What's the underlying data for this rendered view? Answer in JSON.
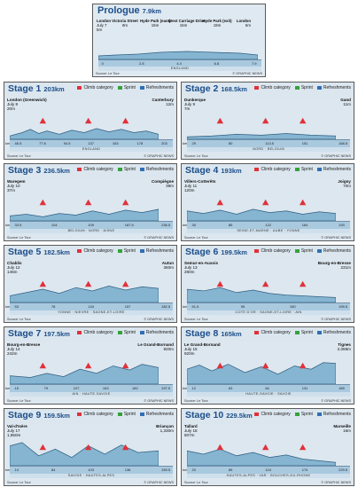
{
  "legend": {
    "climb": "Climb category",
    "sprint": "Sprint",
    "refresh": "Refreshments"
  },
  "colors": {
    "climb": "#e0313a",
    "sprint": "#36a23a",
    "refresh": "#2f6fb5",
    "title": "#1c4e8a",
    "profile": "#2e5f80",
    "fill": "#86b5d2"
  },
  "source": "Source: Le Tour",
  "credit": "© GRAPHIC NEWS",
  "prologue": {
    "title": "Prologue",
    "dist": "7.9km",
    "points": [
      {
        "name": "London",
        "sub": "July 7",
        "el": "5m"
      },
      {
        "name": "Victoria Street",
        "el": "8m"
      },
      {
        "name": "Hyde Park (east)",
        "el": "15m"
      },
      {
        "name": "West Carriage Drive",
        "el": "15m"
      },
      {
        "name": "Hyde Park (exit)",
        "el": "19m"
      },
      {
        "name": "London",
        "el": "5m"
      }
    ],
    "ticks": [
      "0",
      "2.8",
      "4.4",
      "6.8",
      "7.9"
    ],
    "region": "ENGLAND"
  },
  "stages": [
    {
      "title": "Stage 1",
      "dist": "203km",
      "start": [
        "London (Greenwich)",
        "July 8",
        "20m"
      ],
      "finish": [
        "Canterbury",
        "12m"
      ],
      "region": "ENGLAND",
      "ticks": [
        "46.5",
        "77.6",
        "94.5",
        "137",
        "163",
        "178",
        "203"
      ]
    },
    {
      "title": "Stage 2",
      "dist": "168.5km",
      "start": [
        "Dunkerque",
        "July 9",
        "7m"
      ],
      "finish": [
        "Gand",
        "11m"
      ],
      "region": "NORD · BELGIUM",
      "ticks": [
        "29",
        "80",
        "113.5",
        "151",
        "168.5"
      ]
    },
    {
      "title": "Stage 3",
      "dist": "236.5km",
      "start": [
        "Waregem",
        "July 10",
        "37m"
      ],
      "finish": [
        "Compiègne",
        "39m"
      ],
      "region": "BELGIUM · NORD · AISNE",
      "ticks": [
        "33.5",
        "104",
        "109",
        "187.5",
        "236.5"
      ]
    },
    {
      "title": "Stage 4",
      "dist": "193km",
      "start": [
        "Villers-Cotterêts",
        "July 11",
        "120m"
      ],
      "finish": [
        "Joigny",
        "70m"
      ],
      "region": "SEINE-ET-MARNE · AUBE · YONNE",
      "ticks": [
        "30",
        "85",
        "122",
        "164",
        "193"
      ]
    },
    {
      "title": "Stage 5",
      "dist": "182.5km",
      "start": [
        "Chablis",
        "July 12",
        "146m"
      ],
      "finish": [
        "Autun",
        "360m"
      ],
      "region": "YONNE · NIEVRE · SAONE-ET-LOIRE",
      "ticks": [
        "53",
        "78",
        "134",
        "157",
        "182.5"
      ]
    },
    {
      "title": "Stage 6",
      "dist": "199.5km",
      "start": [
        "Semur-en-Auxois",
        "July 13",
        "280m"
      ],
      "finish": [
        "Bourg-en-Bresse",
        "231m"
      ],
      "region": "COTE D'OR · SAONE-ET-LOIRE · AIN",
      "ticks": [
        "51.5",
        "95",
        "150",
        "199.5"
      ]
    },
    {
      "title": "Stage 7",
      "dist": "197.5km",
      "start": [
        "Bourg-en-Bresse",
        "July 14",
        "242m"
      ],
      "finish": [
        "Le Grand-Bornand",
        "920m"
      ],
      "region": "AIN · HAUTE-SAVOIE",
      "ticks": [
        "15",
        "79",
        "107",
        "163",
        "182",
        "197.5"
      ]
    },
    {
      "title": "Stage 8",
      "dist": "165km",
      "start": [
        "Le Grand-Bornand",
        "July 15",
        "920m"
      ],
      "finish": [
        "Tignes",
        "2,068m"
      ],
      "region": "HAUTE-SAVOIE · SAVOIE",
      "ticks": [
        "12",
        "63",
        "84",
        "131",
        "165"
      ]
    },
    {
      "title": "Stage 9",
      "dist": "159.5km",
      "start": [
        "Val-d'Isère",
        "July 17",
        "1,850m"
      ],
      "finish": [
        "Briançon",
        "1,330m"
      ],
      "region": "SAVOIE · HAUTES-ALPES",
      "ticks": [
        "14",
        "84",
        "103",
        "136",
        "159.5"
      ]
    },
    {
      "title": "Stage 10",
      "dist": "229.5km",
      "start": [
        "Tallard",
        "July 18",
        "607m"
      ],
      "finish": [
        "Marseille",
        "16m"
      ],
      "region": "HAUTES-ALPES · VAR · BOUCHES-DU-RHONE",
      "ticks": [
        "20",
        "85",
        "124",
        "174",
        "229.5"
      ]
    }
  ]
}
